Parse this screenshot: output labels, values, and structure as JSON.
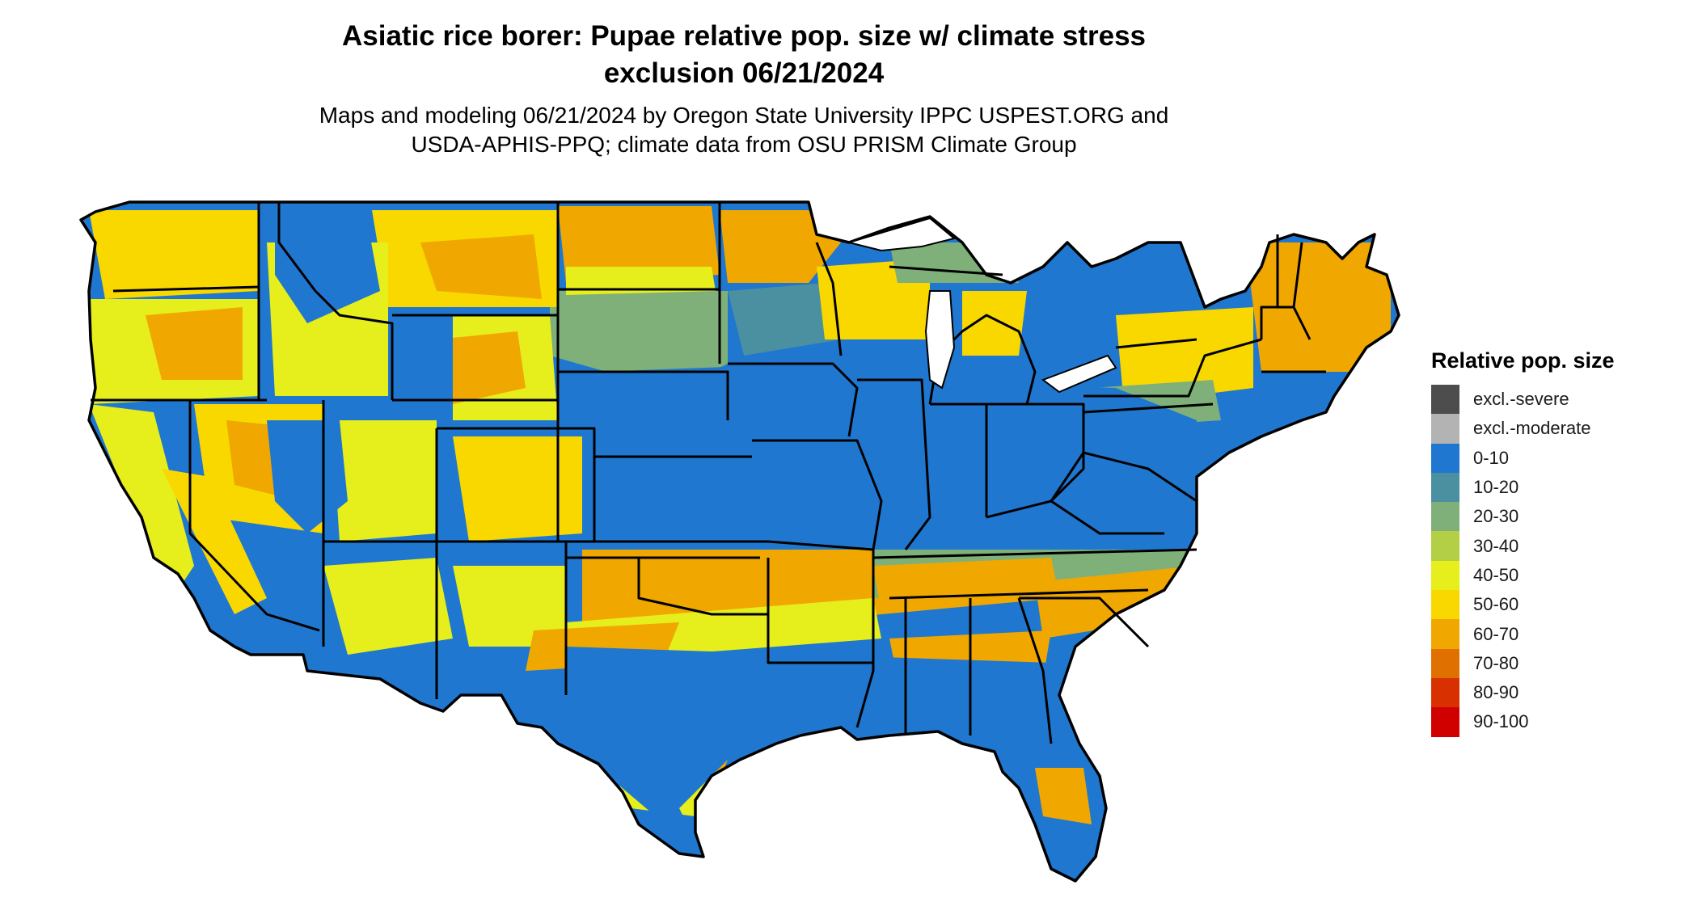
{
  "title_line1": "Asiatic rice borer: Pupae relative pop. size w/ climate stress",
  "title_line2": "exclusion 06/21/2024",
  "subtitle_line1": "Maps and modeling 06/21/2024 by Oregon State University IPPC USPEST.ORG and",
  "subtitle_line2": "USDA-APHIS-PPQ; climate data from OSU PRISM Climate Group",
  "legend": {
    "title": "Relative pop. size",
    "items": [
      {
        "label": "excl.-severe",
        "color": "#4d4d4d"
      },
      {
        "label": "excl.-moderate",
        "color": "#b3b3b3"
      },
      {
        "label": "0-10",
        "color": "#1f77d0"
      },
      {
        "label": "10-20",
        "color": "#4a90a0"
      },
      {
        "label": "20-30",
        "color": "#7fb07a"
      },
      {
        "label": "30-40",
        "color": "#b2cf45"
      },
      {
        "label": "40-50",
        "color": "#e6ee1c"
      },
      {
        "label": "50-60",
        "color": "#f9d800"
      },
      {
        "label": "60-70",
        "color": "#f0a800"
      },
      {
        "label": "70-80",
        "color": "#e07000"
      },
      {
        "label": "80-90",
        "color": "#d83000"
      },
      {
        "label": "90-100",
        "color": "#d00000"
      }
    ]
  },
  "map": {
    "base_color": "#1f77d0",
    "border_color": "#000000"
  }
}
